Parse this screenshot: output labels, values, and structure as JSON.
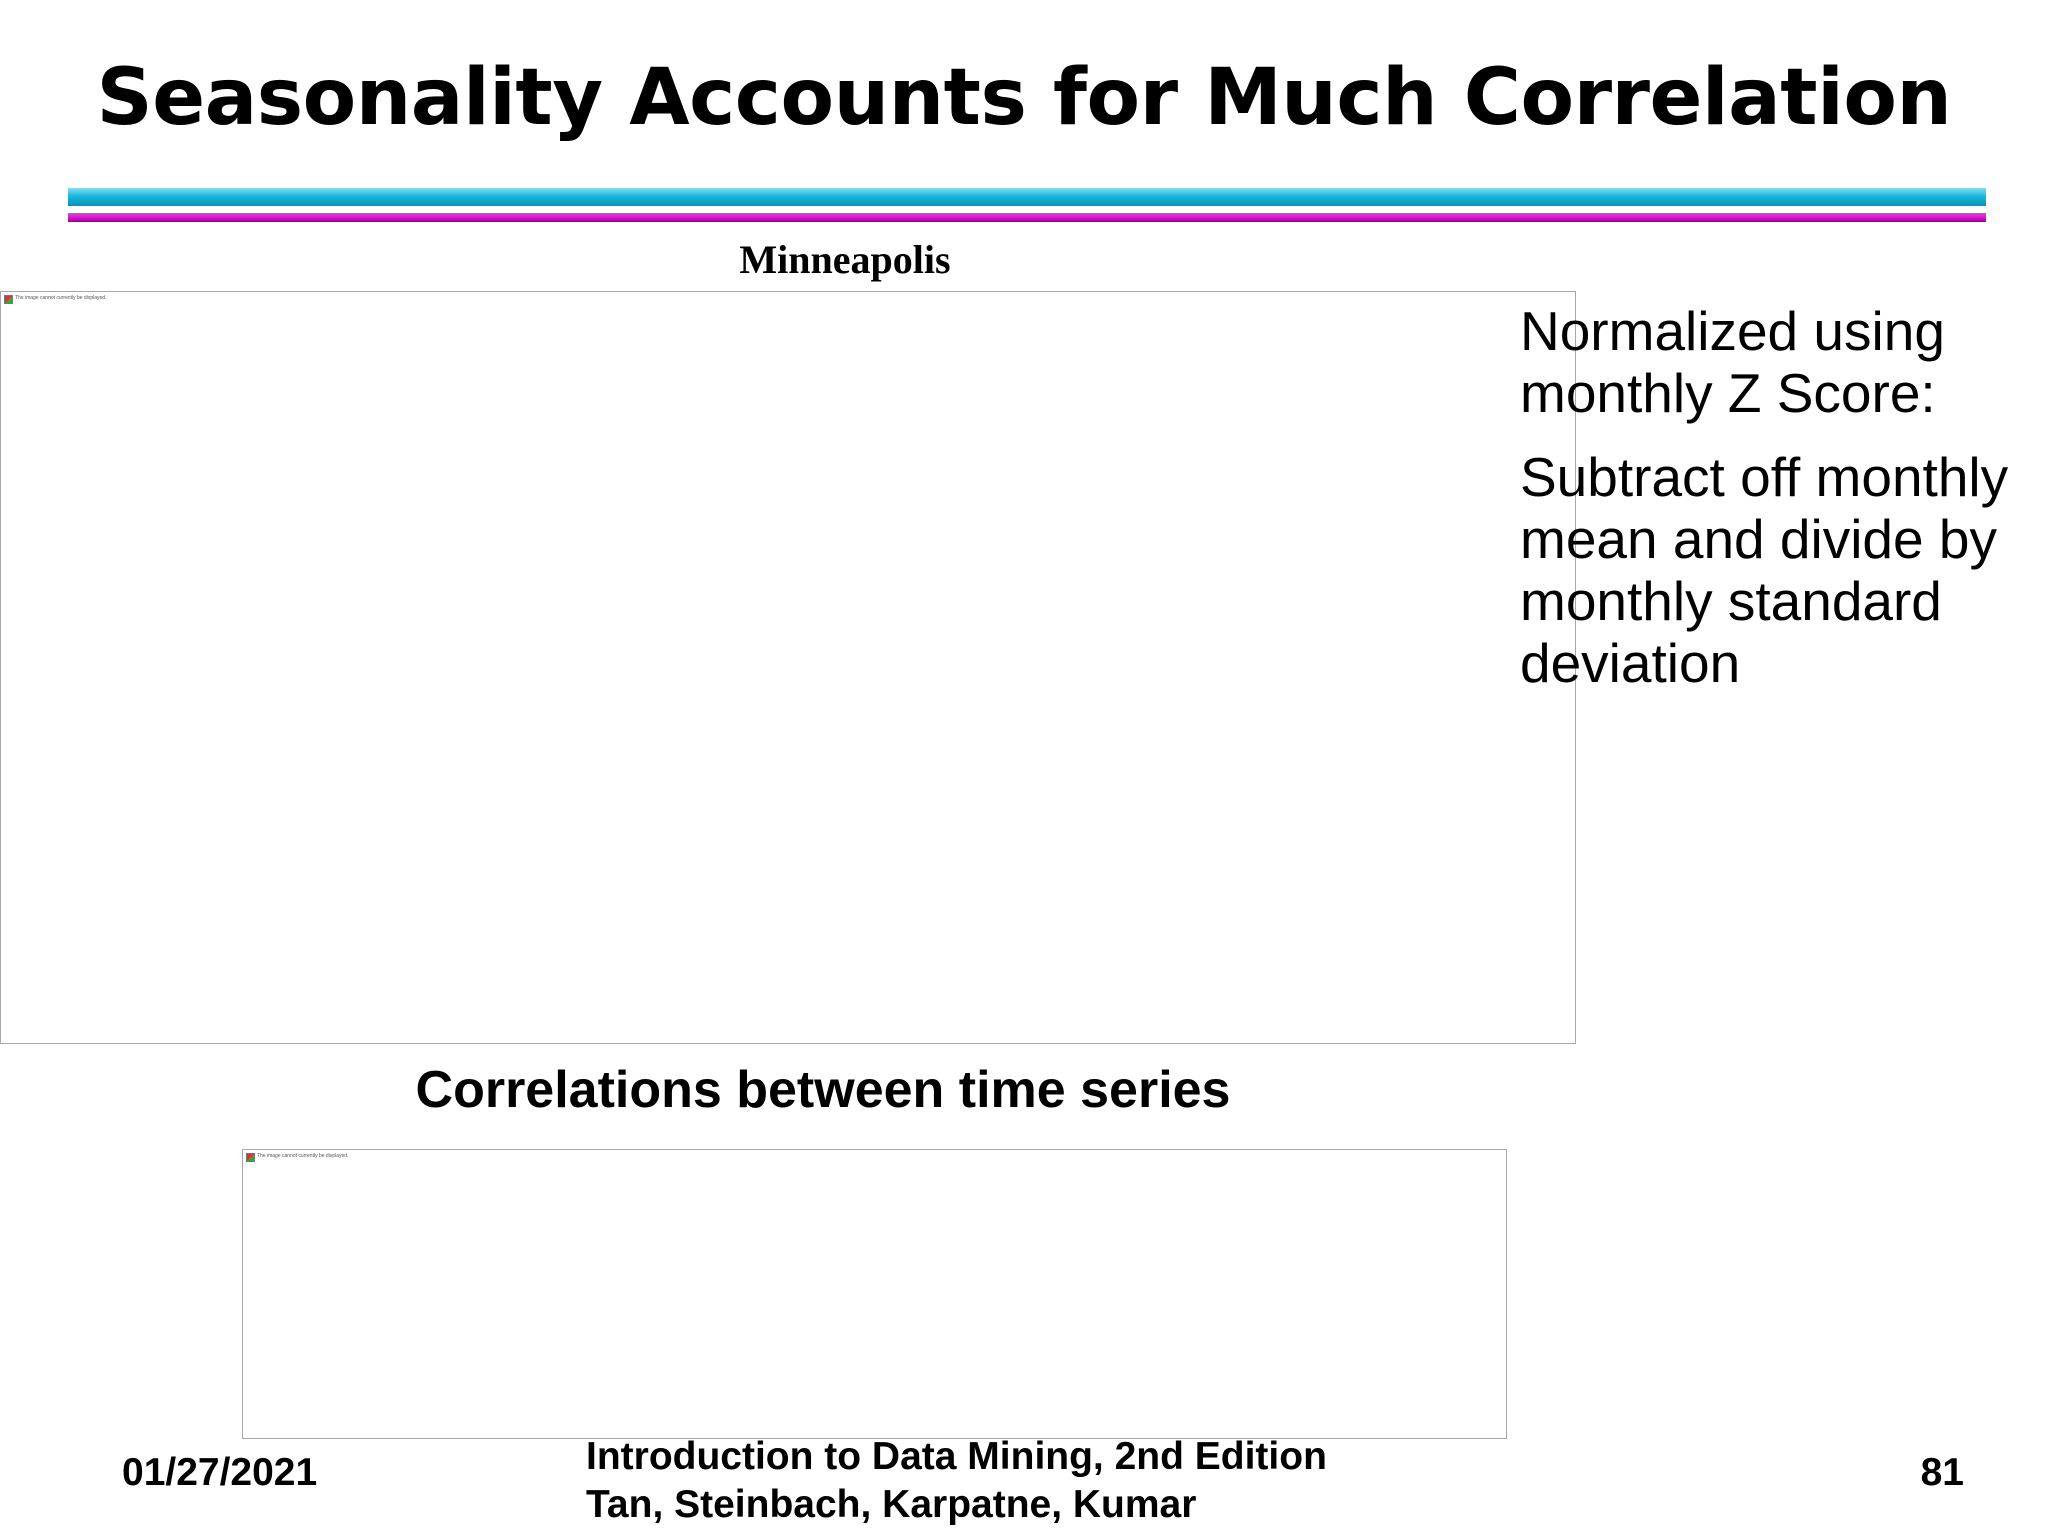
{
  "slide": {
    "title": "Seasonality Accounts for Much Correlation"
  },
  "top_chart": {
    "caption": "Minneapolis",
    "broken_image_text": "The image cannot currently be displayed."
  },
  "side_notes": {
    "line1": "Normalized using monthly Z Score:",
    "line2": "Subtract off monthly mean and divide by monthly standard deviation"
  },
  "bottom_section": {
    "heading": "Correlations between time series",
    "broken_image_text": "The image cannot currently be displayed."
  },
  "footer": {
    "date": "01/27/2021",
    "book_title": "Introduction to Data Mining, 2nd Edition",
    "authors": "Tan, Steinbach, Karpatne, Kumar",
    "page_number": "81"
  },
  "colors": {
    "rule_cyan": "#19b8dc",
    "rule_magenta": "#cc12c4"
  }
}
